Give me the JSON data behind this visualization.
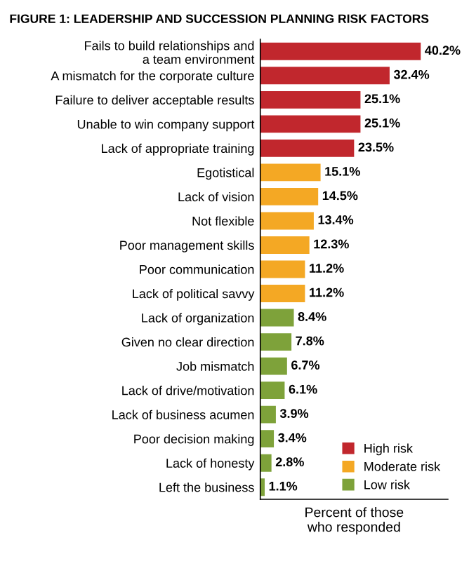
{
  "chart_data": {
    "type": "bar",
    "orientation": "horizontal",
    "title": "FIGURE 1: LEADERSHIP AND SUCCESSION PLANNING RISK FACTORS",
    "xlabel": "Percent of those\nwho responded",
    "categories": [
      "Fails to build relationships and\na team environment",
      "A mismatch for the corporate culture",
      "Failure to deliver acceptable results",
      "Unable to win company support",
      "Lack of appropriate training",
      "Egotistical",
      "Lack of vision",
      "Not flexible",
      "Poor management skills",
      "Poor communication",
      "Lack of political savvy",
      "Lack of organization",
      "Given no clear direction",
      "Job mismatch",
      "Lack of drive/motivation",
      "Lack of business acumen",
      "Poor decision making",
      "Lack of honesty",
      "Left the business"
    ],
    "series": [
      {
        "name": "High risk",
        "color": "#c1272d",
        "values": [
          40.2,
          32.4,
          25.1,
          25.1,
          23.5,
          null,
          null,
          null,
          null,
          null,
          null,
          null,
          null,
          null,
          null,
          null,
          null,
          null,
          null
        ],
        "value_labels": [
          "40.2%",
          "32.4%",
          "25.1%",
          "25.1%",
          "23.5%",
          null,
          null,
          null,
          null,
          null,
          null,
          null,
          null,
          null,
          null,
          null,
          null,
          null,
          null
        ]
      },
      {
        "name": "Moderate risk",
        "color": "#f4a824",
        "values": [
          null,
          null,
          null,
          null,
          null,
          15.1,
          14.5,
          13.4,
          12.3,
          11.2,
          11.2,
          null,
          null,
          null,
          null,
          null,
          null,
          null,
          null
        ],
        "value_labels": [
          null,
          null,
          null,
          null,
          null,
          "15.1%",
          "14.5%",
          "13.4%",
          "12.3%",
          "11.2%",
          "11.2%",
          null,
          null,
          null,
          null,
          null,
          null,
          null,
          null
        ]
      },
      {
        "name": "Low risk",
        "color": "#7ea23a",
        "values": [
          null,
          null,
          null,
          null,
          null,
          null,
          null,
          null,
          null,
          null,
          null,
          8.4,
          7.8,
          6.7,
          6.1,
          3.9,
          3.4,
          2.8,
          1.1
        ],
        "value_labels": [
          null,
          null,
          null,
          null,
          null,
          null,
          null,
          null,
          null,
          null,
          null,
          "8.4%",
          "7.8%",
          "6.7%",
          "6.1%",
          "3.9%",
          "3.4%",
          "2.8%",
          "1.1%"
        ]
      }
    ],
    "xlim": [
      0,
      47
    ],
    "tick_labels": "y",
    "grid": false,
    "legend": "bottom right"
  }
}
